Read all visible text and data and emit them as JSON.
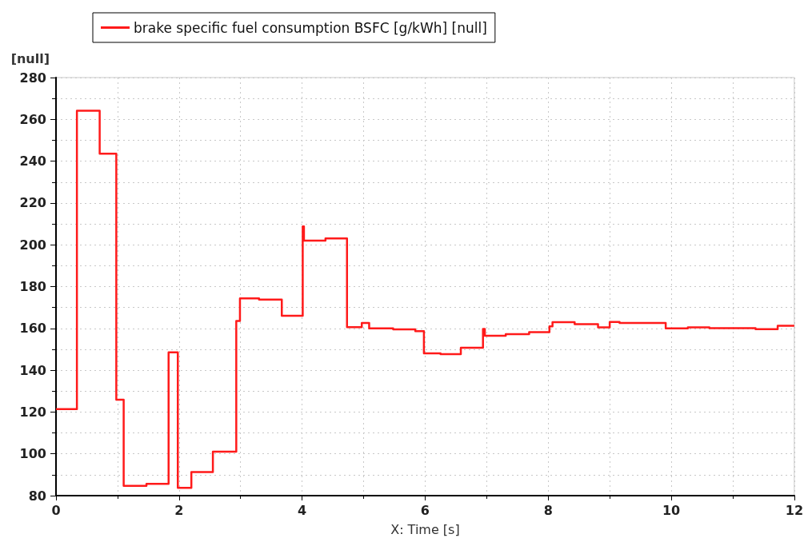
{
  "chart_data": {
    "type": "step",
    "xlabel": "X: Time [s]",
    "ylabel": "[null]",
    "xlim": [
      0,
      12
    ],
    "xticks": [
      0,
      2,
      4,
      6,
      8,
      10,
      12
    ],
    "ylim": [
      80,
      280
    ],
    "yticks": [
      80,
      100,
      120,
      140,
      160,
      180,
      200,
      220,
      240,
      260,
      280
    ],
    "grid": true,
    "legend": "top",
    "marker": "none",
    "series": [
      {
        "name": "brake specific fuel consumption BSFC [g/kWh] [null]",
        "color": "#ff1a1a",
        "x": [
          0,
          0.34,
          0.71,
          0.98,
          1.1,
          1.47,
          1.83,
          1.98,
          2.2,
          2.55,
          2.93,
          2.99,
          3.3,
          3.67,
          4.01,
          4.03,
          4.38,
          4.73,
          4.97,
          5.09,
          5.48,
          5.84,
          5.98,
          6.25,
          6.58,
          6.94,
          6.97,
          7.31,
          7.69,
          8.02,
          8.07,
          8.43,
          8.81,
          9.0,
          9.16,
          9.91,
          10.27,
          10.62,
          11.37,
          11.73,
          12
        ],
        "values": [
          121.4,
          264.1,
          243.6,
          125.9,
          84.7,
          85.6,
          148.5,
          83.7,
          91.3,
          101,
          163.6,
          174.4,
          173.8,
          166,
          208.8,
          202,
          203,
          160.6,
          162.6,
          160,
          159.5,
          158.7,
          148.1,
          147.7,
          150.7,
          159.7,
          156.5,
          157.2,
          158.2,
          161,
          163,
          162,
          160.5,
          163.1,
          162.6,
          160,
          160.5,
          160.1,
          159.6,
          161.3,
          161.3
        ]
      }
    ]
  }
}
